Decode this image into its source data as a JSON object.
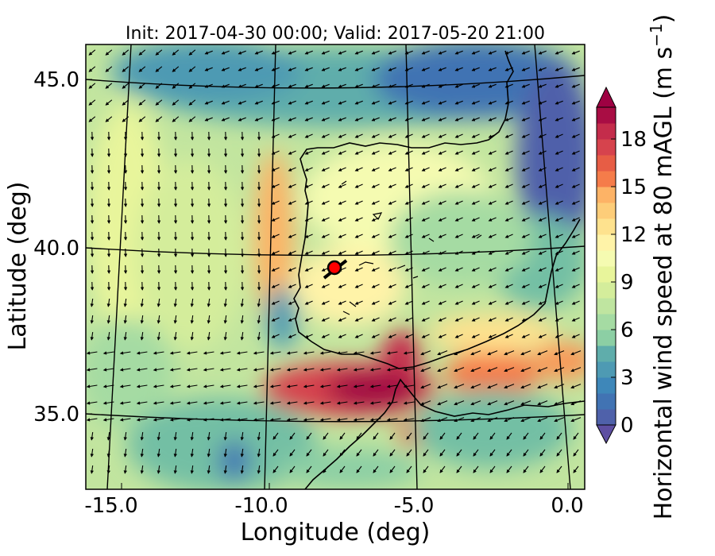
{
  "title": "Init: 2017-04-30 00:00; Valid: 2017-05-20 21:00",
  "x_axis": {
    "label": "Longitude (deg)",
    "ticks": [
      "-15.0",
      "-10.0",
      "-5.0",
      "0.0"
    ],
    "range": [
      -16.1,
      0.2
    ]
  },
  "y_axis": {
    "label": "Latitude (deg)",
    "ticks": [
      "45.0",
      "40.0",
      "35.0"
    ],
    "range": [
      32.6,
      46.0
    ]
  },
  "colorbar": {
    "label_main": "Horizontal wind speed at 80 mAGL (m s",
    "label_exp": "−1",
    "label_close": ")",
    "ticks": [
      "0",
      "3",
      "6",
      "9",
      "12",
      "15",
      "18"
    ],
    "range": [
      0,
      20
    ],
    "levels": 20,
    "extend": "both",
    "colormap": "Spectral_r",
    "colors": [
      "#5e4fa2",
      "#4f61aa",
      "#4173b3",
      "#3e87b9",
      "#4e9ab3",
      "#5fadab",
      "#73bfa4",
      "#8ccfa4",
      "#a5dba3",
      "#bfe5a0",
      "#d4ed9b",
      "#e8f59b",
      "#f5fbb1",
      "#fff3a8",
      "#fee28e",
      "#fdcd79",
      "#fdb366",
      "#f99858",
      "#f57c4a",
      "#e75d45",
      "#d6434d",
      "#c42c4b",
      "#a90d44",
      "#9e0142"
    ]
  },
  "map": {
    "region": "Iberian Peninsula and Strait of Gibraltar",
    "graticule_lon": [
      -15,
      -10,
      -5,
      0
    ],
    "graticule_lat": [
      35,
      40,
      45
    ],
    "site_marker": {
      "lon": -7.6,
      "lat": 39.3,
      "color": "#ff0000"
    }
  }
}
